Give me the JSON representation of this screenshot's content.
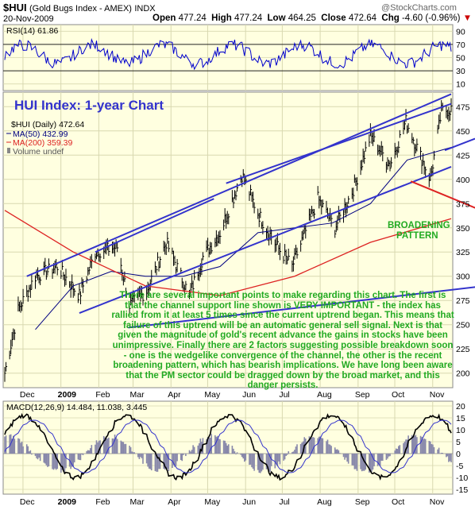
{
  "header": {
    "symbol": "$HUI",
    "name": "(Gold Bugs Index - AMEX)",
    "type": "INDX",
    "watermark": "@StockCharts.com",
    "date": "20-Nov-2009",
    "open_label": "Open",
    "open": "477.24",
    "high_label": "High",
    "high": "477.24",
    "low_label": "Low",
    "low": "464.25",
    "close_label": "Close",
    "close": "472.64",
    "chg_label": "Chg",
    "chg": "-4.60 (-0.96%)"
  },
  "rsi": {
    "label": "RSI(14) 61.86",
    "ticks": [
      "90",
      "70",
      "50",
      "30",
      "10"
    ],
    "color": "#0000cc"
  },
  "main": {
    "chart_title": "HUI Index: 1-year Chart",
    "legend": {
      "price": "$HUI (Daily) 472.64",
      "ma50": "MA(50) 432.99",
      "ma200": "MA(200) 359.39",
      "volume": "Volume undef"
    },
    "annotation_broadening": [
      "BROADENING",
      "PATTERN"
    ],
    "commentary": "There are several important points to make regarding this chart. The first is that the channel support line shown is VERY IMPORTANT - the index has rallied from it at least 5 times since the current uptrend began. This means that failure of this uptrend will be an automatic general sell signal. Next is that given the magnitude of gold's recent advance the gains in stocks have been unimpressive. Finally there are 2 factors suggesting possible breakdown soon - one is the wedgelike convergence of the channel, the other is the recent broadening pattern, which has bearish implications. We have long been aware that the PM sector could be dragged down by the broad market, and this danger persists.",
    "y_ticks": [
      "475",
      "450",
      "425",
      "400",
      "375",
      "350",
      "325",
      "300",
      "275",
      "250",
      "225",
      "200"
    ]
  },
  "macd": {
    "label": "MACD(12,26,9) 14.484, 11.038, 3.445",
    "ticks": [
      "20",
      "15",
      "10",
      "5",
      "0",
      "-5",
      "-10",
      "-15"
    ]
  },
  "x_months": [
    "Dec",
    "2009",
    "Feb",
    "Mar",
    "Apr",
    "May",
    "Jun",
    "Jul",
    "Aug",
    "Sep",
    "Oct",
    "Nov"
  ],
  "colors": {
    "panel_bg": "#ffffe0",
    "channel": "#3333cc",
    "ma200": "#dd2222",
    "ma50": "#000080",
    "broadening": "#22aa22",
    "price": "#000000"
  },
  "chart_data": {
    "type": "line",
    "title": "HUI Index: 1-year Chart",
    "x_range": [
      "2008-11-20",
      "2009-11-20"
    ],
    "ylim": [
      185,
      490
    ],
    "series": [
      {
        "name": "$HUI (Daily) 472.64",
        "x": [
          "2008-11-20",
          "2008-12-01",
          "2008-12-15",
          "2009-01-02",
          "2009-01-20",
          "2009-02-02",
          "2009-02-20",
          "2009-03-02",
          "2009-03-16",
          "2009-04-01",
          "2009-04-20",
          "2009-05-01",
          "2009-05-15",
          "2009-06-02",
          "2009-06-15",
          "2009-07-01",
          "2009-07-13",
          "2009-08-03",
          "2009-08-17",
          "2009-09-01",
          "2009-09-15",
          "2009-10-01",
          "2009-10-14",
          "2009-11-03",
          "2009-11-12",
          "2009-11-20"
        ],
        "values": [
          200,
          265,
          300,
          310,
          280,
          325,
          330,
          270,
          285,
          335,
          280,
          320,
          345,
          405,
          365,
          330,
          310,
          380,
          350,
          390,
          445,
          415,
          460,
          400,
          470,
          472.64
        ]
      },
      {
        "name": "MA(50) 432.99",
        "x": [
          "2008-12-15",
          "2009-01-15",
          "2009-02-15",
          "2009-03-15",
          "2009-04-15",
          "2009-05-15",
          "2009-06-15",
          "2009-07-15",
          "2009-08-15",
          "2009-09-15",
          "2009-10-15",
          "2009-11-20"
        ],
        "values": [
          245,
          290,
          305,
          300,
          300,
          310,
          345,
          350,
          355,
          375,
          420,
          432.99
        ]
      },
      {
        "name": "MA(200) 359.39",
        "x": [
          "2008-11-20",
          "2009-01-15",
          "2009-03-15",
          "2009-05-15",
          "2009-07-15",
          "2009-09-15",
          "2009-11-20"
        ],
        "values": [
          368,
          325,
          290,
          280,
          300,
          335,
          359.39
        ]
      }
    ],
    "rsi": {
      "name": "RSI(14) 61.86",
      "ylim": [
        0,
        100
      ]
    },
    "macd": {
      "name": "MACD(12,26,9) 14.484, 11.038, 3.445",
      "ylim": [
        -17,
        22
      ],
      "macd": 14.484,
      "signal": 11.038,
      "histogram": 3.445
    }
  }
}
